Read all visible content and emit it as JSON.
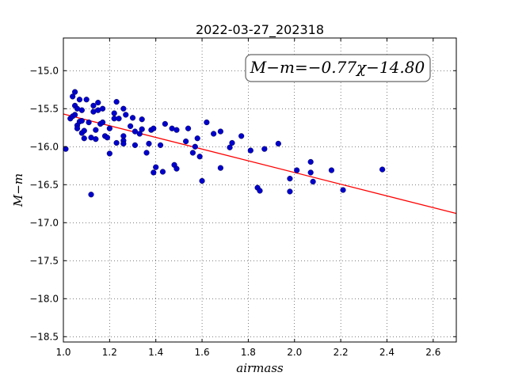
{
  "chart_data": {
    "type": "scatter",
    "title": "2022-03-27_202318",
    "xlabel": "airmass",
    "ylabel": "M−m",
    "xlim": [
      1.0,
      2.7
    ],
    "ylim": [
      -18.57,
      -14.57
    ],
    "xticks": [
      1.0,
      1.2,
      1.4,
      1.6,
      1.8,
      2.0,
      2.2,
      2.4,
      2.6
    ],
    "xtick_labels": [
      "1.0",
      "1.2",
      "1.4",
      "1.6",
      "1.8",
      "2.0",
      "2.2",
      "2.4",
      "2.6"
    ],
    "yticks": [
      -15.0,
      -15.5,
      -16.0,
      -16.5,
      -17.0,
      -17.5,
      -18.0,
      -18.5
    ],
    "ytick_labels": [
      "−15.0",
      "−15.5",
      "−16.0",
      "−16.5",
      "−17.0",
      "−17.5",
      "−18.0",
      "−18.5"
    ],
    "grid": true,
    "annotation": "M−m=−0.77χ−14.80",
    "fit": {
      "slope": -0.77,
      "intercept": -14.8,
      "color": "#ff0000"
    },
    "marker_color": "#0000cc",
    "points": [
      [
        1.01,
        -16.03
      ],
      [
        1.03,
        -15.63
      ],
      [
        1.04,
        -15.6
      ],
      [
        1.04,
        -15.34
      ],
      [
        1.05,
        -15.28
      ],
      [
        1.05,
        -15.46
      ],
      [
        1.05,
        -15.58
      ],
      [
        1.06,
        -15.72
      ],
      [
        1.06,
        -15.76
      ],
      [
        1.06,
        -15.5
      ],
      [
        1.07,
        -15.67
      ],
      [
        1.07,
        -15.38
      ],
      [
        1.08,
        -15.52
      ],
      [
        1.08,
        -15.66
      ],
      [
        1.08,
        -15.82
      ],
      [
        1.09,
        -15.79
      ],
      [
        1.09,
        -15.89
      ],
      [
        1.1,
        -15.38
      ],
      [
        1.11,
        -15.68
      ],
      [
        1.12,
        -16.63
      ],
      [
        1.12,
        -15.88
      ],
      [
        1.13,
        -15.46
      ],
      [
        1.13,
        -15.54
      ],
      [
        1.14,
        -15.78
      ],
      [
        1.14,
        -15.9
      ],
      [
        1.15,
        -15.42
      ],
      [
        1.15,
        -15.52
      ],
      [
        1.16,
        -15.7
      ],
      [
        1.17,
        -15.68
      ],
      [
        1.17,
        -15.5
      ],
      [
        1.18,
        -15.86
      ],
      [
        1.19,
        -15.88
      ],
      [
        1.2,
        -15.76
      ],
      [
        1.2,
        -16.09
      ],
      [
        1.22,
        -15.56
      ],
      [
        1.22,
        -15.63
      ],
      [
        1.23,
        -15.95
      ],
      [
        1.23,
        -15.41
      ],
      [
        1.24,
        -15.63
      ],
      [
        1.26,
        -15.86
      ],
      [
        1.26,
        -15.92
      ],
      [
        1.26,
        -15.96
      ],
      [
        1.26,
        -15.5
      ],
      [
        1.27,
        -15.58
      ],
      [
        1.29,
        -15.73
      ],
      [
        1.3,
        -15.62
      ],
      [
        1.31,
        -15.98
      ],
      [
        1.31,
        -15.8
      ],
      [
        1.33,
        -15.83
      ],
      [
        1.34,
        -15.64
      ],
      [
        1.34,
        -15.77
      ],
      [
        1.36,
        -16.08
      ],
      [
        1.37,
        -15.96
      ],
      [
        1.38,
        -15.78
      ],
      [
        1.39,
        -15.76
      ],
      [
        1.39,
        -16.34
      ],
      [
        1.4,
        -16.27
      ],
      [
        1.42,
        -15.98
      ],
      [
        1.43,
        -16.33
      ],
      [
        1.44,
        -15.7
      ],
      [
        1.47,
        -15.76
      ],
      [
        1.48,
        -16.24
      ],
      [
        1.49,
        -15.78
      ],
      [
        1.49,
        -16.29
      ],
      [
        1.53,
        -15.93
      ],
      [
        1.54,
        -15.76
      ],
      [
        1.56,
        -16.08
      ],
      [
        1.57,
        -16.0
      ],
      [
        1.58,
        -15.89
      ],
      [
        1.59,
        -16.13
      ],
      [
        1.6,
        -16.45
      ],
      [
        1.62,
        -15.68
      ],
      [
        1.65,
        -15.83
      ],
      [
        1.68,
        -15.8
      ],
      [
        1.68,
        -16.28
      ],
      [
        1.72,
        -16.01
      ],
      [
        1.73,
        -15.95
      ],
      [
        1.77,
        -15.86
      ],
      [
        1.81,
        -16.05
      ],
      [
        1.84,
        -16.54
      ],
      [
        1.85,
        -16.58
      ],
      [
        1.87,
        -16.03
      ],
      [
        1.93,
        -15.96
      ],
      [
        1.98,
        -16.59
      ],
      [
        1.98,
        -16.42
      ],
      [
        2.01,
        -16.31
      ],
      [
        2.07,
        -16.34
      ],
      [
        2.07,
        -16.2
      ],
      [
        2.08,
        -16.46
      ],
      [
        2.16,
        -16.31
      ],
      [
        2.21,
        -16.57
      ],
      [
        2.38,
        -16.3
      ]
    ]
  }
}
